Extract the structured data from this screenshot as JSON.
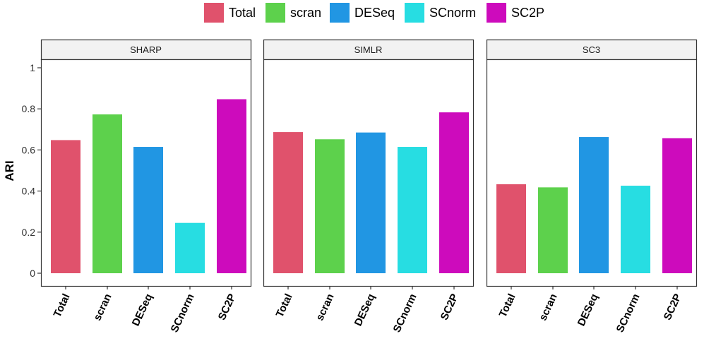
{
  "chart_data": {
    "type": "bar",
    "ylabel": "ARI",
    "xlabel": "",
    "ylim": [
      0,
      1
    ],
    "yticks": [
      "0",
      "0.2",
      "0.4",
      "0.6",
      "0.8",
      "1"
    ],
    "ytick_values": [
      0,
      0.2,
      0.4,
      0.6,
      0.8,
      1
    ],
    "categories": [
      "Total",
      "scran",
      "DESeq",
      "SCnorm",
      "SC2P"
    ],
    "legend": [
      {
        "label": "Total",
        "color": "#E0526C"
      },
      {
        "label": "scran",
        "color": "#5DD14C"
      },
      {
        "label": "DESeq",
        "color": "#2196E3"
      },
      {
        "label": "SCnorm",
        "color": "#27DDE2"
      },
      {
        "label": "SC2P",
        "color": "#CD0BBC"
      }
    ],
    "panels": [
      {
        "title": "SHARP",
        "values": [
          0.648,
          0.773,
          0.615,
          0.245,
          0.847
        ]
      },
      {
        "title": "SIMLR",
        "values": [
          0.687,
          0.652,
          0.685,
          0.615,
          0.783
        ]
      },
      {
        "title": "SC3",
        "values": [
          0.433,
          0.418,
          0.663,
          0.426,
          0.657
        ]
      }
    ]
  }
}
